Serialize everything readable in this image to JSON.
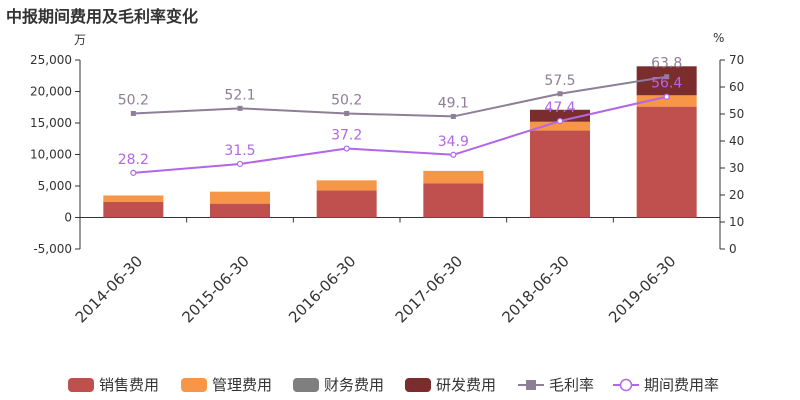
{
  "title": "中报期间费用及毛利率变化",
  "units": {
    "left": "万",
    "right": "%"
  },
  "colors": {
    "sales": "#c0504d",
    "admin": "#f79646",
    "finance": "#7f7f7f",
    "rd": "#7b2c2c",
    "gross_margin": "#8e7e96",
    "expense_rate": "#b266e8",
    "axis": "#333333",
    "grid": "#dddddd"
  },
  "legend": {
    "sales": "销售费用",
    "admin": "管理费用",
    "finance": "财务费用",
    "rd": "研发费用",
    "gross_margin": "毛利率",
    "expense_rate": "期间费用率"
  },
  "chart_data": {
    "type": "bar",
    "title": "中报期间费用及毛利率变化",
    "categories": [
      "2014-06-30",
      "2015-06-30",
      "2016-06-30",
      "2017-06-30",
      "2018-06-30",
      "2019-06-30"
    ],
    "stacked": true,
    "series": [
      {
        "name": "销售费用",
        "axis": "left",
        "values": [
          2500,
          2200,
          4300,
          5400,
          13800,
          17600
        ]
      },
      {
        "name": "管理费用",
        "axis": "left",
        "values": [
          1000,
          1900,
          1600,
          2000,
          1400,
          1800
        ]
      },
      {
        "name": "财务费用",
        "axis": "left",
        "values": [
          0,
          0,
          0,
          0,
          0,
          0
        ]
      },
      {
        "name": "研发费用",
        "axis": "left",
        "values": [
          0,
          0,
          0,
          0,
          1900,
          4600
        ]
      },
      {
        "name": "毛利率",
        "type": "line",
        "axis": "right",
        "values": [
          50.2,
          52.1,
          50.2,
          49.1,
          57.5,
          63.8
        ]
      },
      {
        "name": "期间费用率",
        "type": "line",
        "axis": "right",
        "values": [
          28.2,
          31.5,
          37.2,
          34.9,
          47.4,
          56.4
        ]
      }
    ],
    "y_left": {
      "min": -5000,
      "max": 25000,
      "ticks": [
        -5000,
        0,
        5000,
        10000,
        15000,
        20000,
        25000
      ],
      "tick_labels": [
        "-5,000",
        "0",
        "5,000",
        "10,000",
        "15,000",
        "20,000",
        "25,000"
      ]
    },
    "y_right": {
      "min": 0,
      "max": 70,
      "ticks": [
        0,
        10,
        20,
        30,
        40,
        50,
        60,
        70
      ],
      "tick_labels": [
        "0",
        "10",
        "20",
        "30",
        "40",
        "50",
        "60",
        "70"
      ]
    },
    "grid": false,
    "legend_position": "bottom"
  }
}
